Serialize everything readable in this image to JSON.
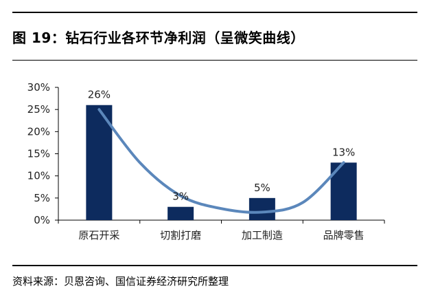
{
  "figure": {
    "title": "图 19：钻石行业各环节净利润（呈微笑曲线）",
    "source": "资料来源：贝恩咨询、国信证券经济研究所整理"
  },
  "chart_data": {
    "type": "bar",
    "categories": [
      "原石开采",
      "切割打磨",
      "加工制造",
      "品牌零售"
    ],
    "values": [
      26,
      3,
      5,
      13
    ],
    "data_labels": [
      "26%",
      "3%",
      "5%",
      "13%"
    ],
    "yticks": [
      "0%",
      "5%",
      "10%",
      "15%",
      "20%",
      "25%",
      "30%"
    ],
    "ylim": [
      0,
      30
    ],
    "bar_color": "#0d2b5e",
    "curve_color": "#5b87bb",
    "curve": [
      {
        "x": 0,
        "y": 25
      },
      {
        "x": 0.5,
        "y": 13
      },
      {
        "x": 1,
        "y": 5.5
      },
      {
        "x": 1.5,
        "y": 2.6
      },
      {
        "x": 2,
        "y": 1.8
      },
      {
        "x": 2.5,
        "y": 4
      },
      {
        "x": 3,
        "y": 13
      }
    ],
    "grid": false,
    "legend": "none"
  }
}
